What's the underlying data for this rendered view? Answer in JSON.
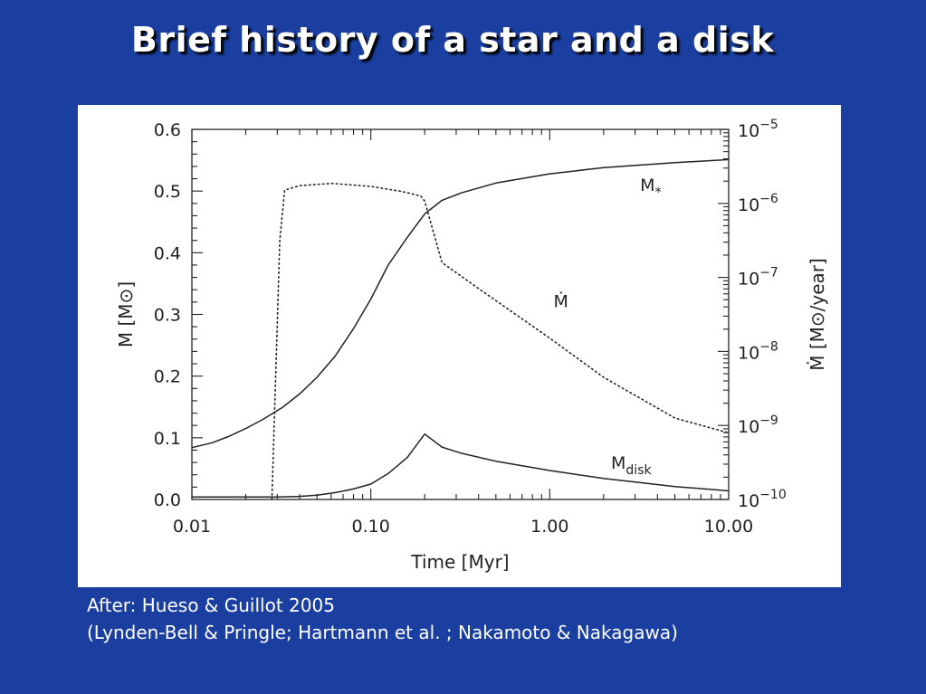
{
  "slide": {
    "title": "Brief history of a star and a disk",
    "caption_line1": "After: Hueso & Guillot 2005",
    "caption_line2": "(Lynden-Bell & Pringle; Hartmann et al. ; Nakamoto & Nakagawa)"
  },
  "chart_data": {
    "type": "line",
    "x_scale": "log",
    "xlim": [
      0.01,
      10
    ],
    "ylim_left": [
      0,
      0.6
    ],
    "ylim_right": [
      1e-10,
      1e-05
    ],
    "right_axis_scale": "log",
    "xlabel": "Time  [Myr]",
    "ylabel_left": "M  [M⊙]",
    "ylabel_right": "Ṁ  [M⊙/year]",
    "x_ticks": [
      {
        "value": 0.01,
        "label": "0.01"
      },
      {
        "value": 0.1,
        "label": "0.10"
      },
      {
        "value": 1,
        "label": "1.00"
      },
      {
        "value": 10,
        "label": "10.00"
      }
    ],
    "y_ticks_left": [
      {
        "value": 0.0,
        "label": "0.0"
      },
      {
        "value": 0.1,
        "label": "0.1"
      },
      {
        "value": 0.2,
        "label": "0.2"
      },
      {
        "value": 0.3,
        "label": "0.3"
      },
      {
        "value": 0.4,
        "label": "0.4"
      },
      {
        "value": 0.5,
        "label": "0.5"
      },
      {
        "value": 0.6,
        "label": "0.6"
      }
    ],
    "y_ticks_right": [
      {
        "exp": -10,
        "base": "10",
        "sup": "−10"
      },
      {
        "exp": -9,
        "base": "10",
        "sup": "−9"
      },
      {
        "exp": -8,
        "base": "10",
        "sup": "−8"
      },
      {
        "exp": -7,
        "base": "10",
        "sup": "−7"
      },
      {
        "exp": -6,
        "base": "10",
        "sup": "−6"
      },
      {
        "exp": -5,
        "base": "10",
        "sup": "−5"
      }
    ],
    "series": [
      {
        "name": "M*",
        "label_main": "M",
        "label_sub": "*",
        "label_at": {
          "x": 3.2,
          "y": 0.5
        },
        "axis": "left",
        "style": "solid",
        "x": [
          0.01,
          0.013,
          0.016,
          0.02,
          0.025,
          0.032,
          0.04,
          0.05,
          0.063,
          0.08,
          0.1,
          0.125,
          0.16,
          0.2,
          0.25,
          0.32,
          0.5,
          1,
          2,
          5,
          10
        ],
        "y": [
          0.084,
          0.092,
          0.102,
          0.115,
          0.13,
          0.149,
          0.171,
          0.198,
          0.232,
          0.277,
          0.325,
          0.38,
          0.425,
          0.463,
          0.485,
          0.497,
          0.513,
          0.528,
          0.538,
          0.546,
          0.551
        ]
      },
      {
        "name": "Mdisk",
        "label_main": "M",
        "label_sub": "disk",
        "label_at": {
          "x": 2.2,
          "y": 0.05
        },
        "axis": "left",
        "style": "solid",
        "x": [
          0.01,
          0.02,
          0.03,
          0.04,
          0.05,
          0.063,
          0.08,
          0.1,
          0.125,
          0.16,
          0.2,
          0.25,
          0.32,
          0.5,
          1,
          2,
          5,
          10
        ],
        "y": [
          0.004,
          0.004,
          0.004,
          0.005,
          0.007,
          0.011,
          0.017,
          0.025,
          0.042,
          0.068,
          0.106,
          0.085,
          0.075,
          0.062,
          0.047,
          0.034,
          0.021,
          0.014
        ],
        "label": "Mdisk"
      },
      {
        "name": "Ṁ",
        "label_main": "Ṁ",
        "label_sub": "",
        "label_at": {
          "x": 1.05,
          "y_log": -7.4
        },
        "axis": "right",
        "style": "dotted",
        "x": [
          0.028,
          0.031,
          0.033,
          0.04,
          0.06,
          0.1,
          0.15,
          0.19,
          0.2,
          0.25,
          0.4,
          1,
          2,
          5,
          10
        ],
        "y_log": [
          -10.0,
          -6.5,
          -5.82,
          -5.76,
          -5.73,
          -5.77,
          -5.84,
          -5.9,
          -5.97,
          -6.8,
          -7.15,
          -7.82,
          -8.35,
          -8.9,
          -9.1
        ]
      }
    ]
  }
}
